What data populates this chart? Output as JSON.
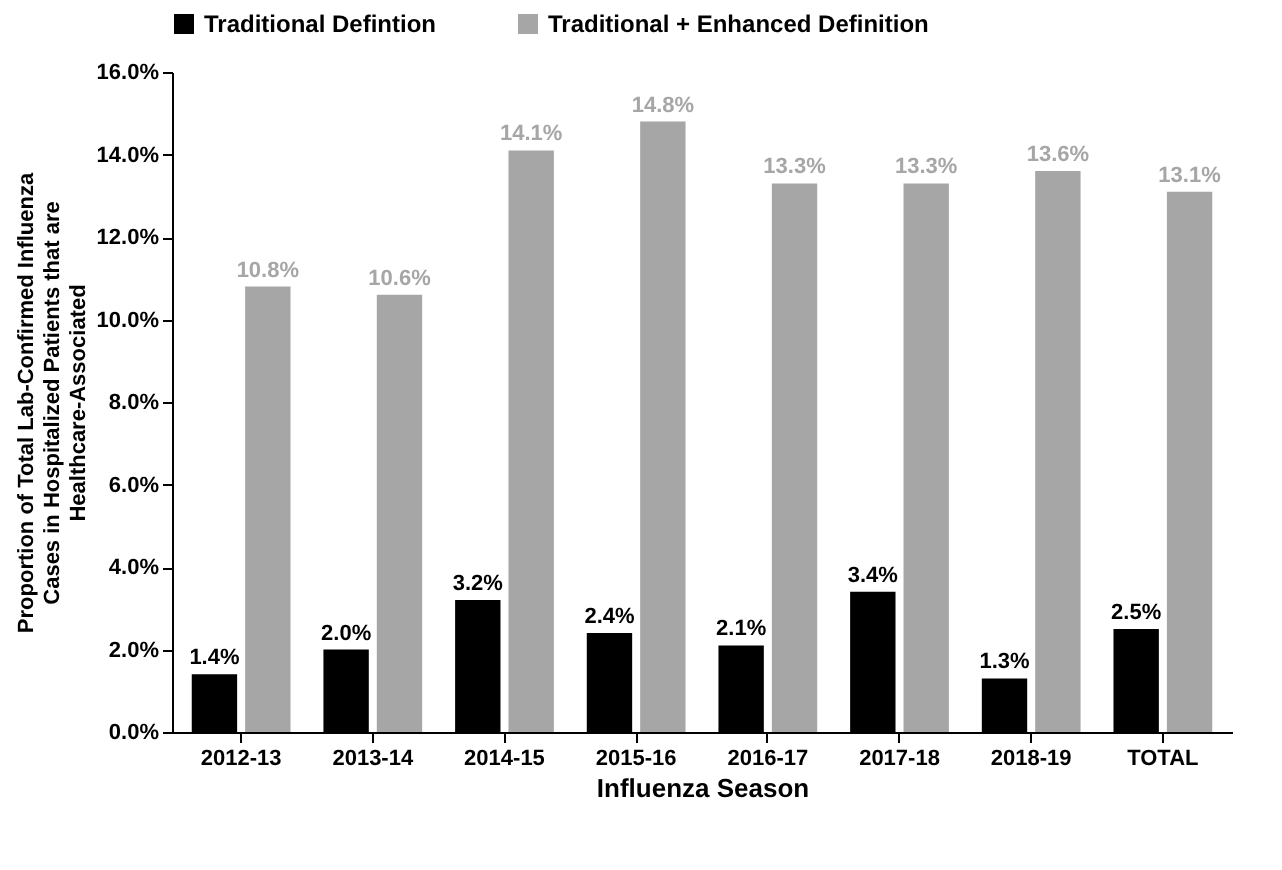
{
  "chart_data": {
    "type": "bar",
    "xlabel": "Influenza Season",
    "ylabel": "Proportion of Total Lab-Confirmed Influenza Cases in Hospitalized Patients that are Healthcare-Associated",
    "categories": [
      "2012-13",
      "2013-14",
      "2014-15",
      "2015-16",
      "2016-17",
      "2017-18",
      "2018-19",
      "TOTAL"
    ],
    "series": [
      {
        "name": "Traditional Defintion",
        "color": "#000000",
        "values": [
          1.4,
          2.0,
          3.2,
          2.4,
          2.1,
          3.4,
          1.3,
          2.5
        ],
        "value_labels": [
          "1.4%",
          "2.0%",
          "3.2%",
          "2.4%",
          "2.1%",
          "3.4%",
          "1.3%",
          "2.5%"
        ]
      },
      {
        "name": "Traditional + Enhanced Definition",
        "color": "#a6a6a6",
        "values": [
          10.8,
          10.6,
          14.1,
          14.8,
          13.3,
          13.3,
          13.6,
          13.1
        ],
        "value_labels": [
          "10.8%",
          "10.6%",
          "14.1%",
          "14.8%",
          "13.3%",
          "13.3%",
          "13.6%",
          "13.1%"
        ]
      }
    ],
    "ylim": [
      0,
      16
    ],
    "yticks": [
      {
        "value": 0,
        "label": "0.0%"
      },
      {
        "value": 2,
        "label": "2.0%"
      },
      {
        "value": 4,
        "label": "4.0%"
      },
      {
        "value": 6,
        "label": "6.0%"
      },
      {
        "value": 8,
        "label": "8.0%"
      },
      {
        "value": 10,
        "label": "10.0%"
      },
      {
        "value": 12,
        "label": "12.0%"
      },
      {
        "value": 14,
        "label": "14.0%"
      },
      {
        "value": 16,
        "label": "16.0%"
      }
    ],
    "grid": false,
    "legend": "top"
  }
}
